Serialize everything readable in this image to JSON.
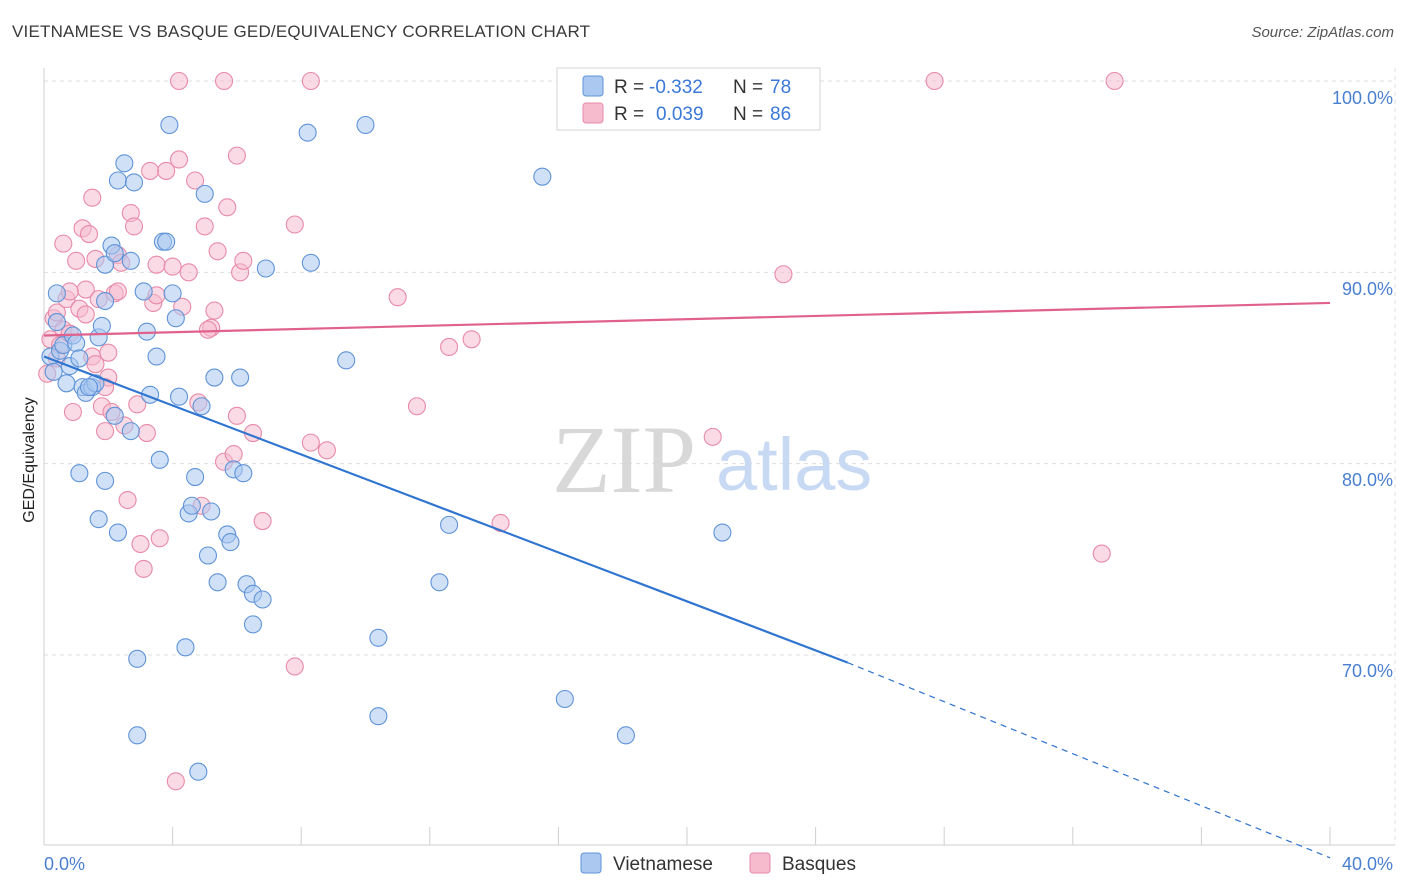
{
  "title": "VIETNAMESE VS BASQUE GED/EQUIVALENCY CORRELATION CHART",
  "source": "Source: ZipAtlas.com",
  "watermark": {
    "zip": "ZIP",
    "atlas": "atlas"
  },
  "legend": {
    "r_label": "R =",
    "n_label": "N =",
    "rows": [
      {
        "r": "-0.332",
        "n": "78"
      },
      {
        "r": "0.039",
        "n": "86"
      }
    ]
  },
  "colors": {
    "blue_fill": "#aac8f0",
    "blue_stroke": "#5f93d8",
    "blue_line": "#2f74d0",
    "pink_fill": "#f6bccd",
    "pink_stroke": "#e88aa8",
    "pink_line": "#e0628c",
    "grid": "#dddddd",
    "axis_text": "#4a7fd0"
  },
  "chart_data": {
    "type": "scatter",
    "title": "VIETNAMESE VS BASQUE GED/EQUIVALENCY CORRELATION CHART",
    "xlabel": "",
    "ylabel": "GED/Equivalency",
    "xlim": [
      0,
      40
    ],
    "ylim": [
      60.5,
      101.5
    ],
    "x_tick_labels": [
      "0.0%",
      "40.0%"
    ],
    "y_ticks": [
      70,
      80,
      90,
      100
    ],
    "y_tick_labels": [
      "70.0%",
      "80.0%",
      "90.0%",
      "100.0%"
    ],
    "grid": true,
    "series": [
      {
        "name": "Vietnamese",
        "r": -0.332,
        "n": 78,
        "trend": {
          "x0": 0,
          "y0": 85.6,
          "x1": 25,
          "y1": 69.6,
          "dash_to_x": 40,
          "dash_to_y": 59.4
        },
        "points": [
          [
            0.2,
            85.6
          ],
          [
            0.3,
            84.8
          ],
          [
            0.4,
            87.4
          ],
          [
            0.5,
            85.9
          ],
          [
            0.6,
            86.2
          ],
          [
            0.7,
            84.2
          ],
          [
            0.8,
            85.1
          ],
          [
            0.9,
            86.7
          ],
          [
            0.4,
            88.9
          ],
          [
            1.0,
            86.3
          ],
          [
            1.1,
            85.5
          ],
          [
            1.2,
            84.0
          ],
          [
            1.3,
            83.7
          ],
          [
            1.5,
            84.0
          ],
          [
            1.6,
            84.2
          ],
          [
            1.7,
            86.6
          ],
          [
            1.8,
            87.2
          ],
          [
            1.9,
            90.4
          ],
          [
            2.1,
            91.4
          ],
          [
            2.2,
            91.0
          ],
          [
            2.3,
            94.8
          ],
          [
            2.5,
            95.7
          ],
          [
            2.8,
            94.7
          ],
          [
            2.7,
            90.6
          ],
          [
            1.9,
            88.5
          ],
          [
            3.1,
            89.0
          ],
          [
            3.2,
            86.9
          ],
          [
            3.3,
            83.6
          ],
          [
            3.5,
            85.6
          ],
          [
            3.6,
            80.2
          ],
          [
            3.7,
            91.6
          ],
          [
            3.8,
            91.6
          ],
          [
            3.9,
            97.7
          ],
          [
            4.0,
            88.9
          ],
          [
            4.1,
            87.6
          ],
          [
            4.2,
            83.5
          ],
          [
            4.4,
            70.4
          ],
          [
            4.5,
            77.4
          ],
          [
            4.6,
            77.8
          ],
          [
            4.7,
            79.3
          ],
          [
            4.9,
            83.0
          ],
          [
            5.0,
            94.1
          ],
          [
            5.1,
            75.2
          ],
          [
            5.2,
            77.5
          ],
          [
            5.3,
            84.5
          ],
          [
            5.4,
            73.8
          ],
          [
            5.7,
            76.3
          ],
          [
            5.8,
            75.9
          ],
          [
            5.9,
            79.7
          ],
          [
            6.1,
            84.5
          ],
          [
            6.2,
            79.5
          ],
          [
            6.3,
            73.7
          ],
          [
            6.5,
            73.2
          ],
          [
            6.5,
            71.6
          ],
          [
            6.8,
            72.9
          ],
          [
            6.9,
            90.2
          ],
          [
            8.2,
            97.3
          ],
          [
            8.3,
            90.5
          ],
          [
            9.4,
            85.4
          ],
          [
            10.0,
            97.7
          ],
          [
            10.4,
            70.9
          ],
          [
            10.4,
            66.8
          ],
          [
            12.3,
            73.8
          ],
          [
            12.6,
            76.8
          ],
          [
            15.5,
            95.0
          ],
          [
            16.2,
            67.7
          ],
          [
            18.1,
            65.8
          ],
          [
            21.1,
            76.4
          ],
          [
            2.9,
            65.8
          ],
          [
            2.9,
            69.8
          ],
          [
            4.8,
            63.9
          ],
          [
            1.1,
            79.5
          ],
          [
            1.7,
            77.1
          ],
          [
            2.3,
            76.4
          ],
          [
            2.7,
            81.7
          ],
          [
            1.9,
            79.1
          ],
          [
            2.2,
            82.5
          ],
          [
            1.4,
            84.0
          ]
        ]
      },
      {
        "name": "Basques",
        "r": 0.039,
        "n": 86,
        "trend": {
          "x0": 0,
          "y0": 86.7,
          "x1": 40,
          "y1": 88.4
        },
        "points": [
          [
            0.1,
            84.7
          ],
          [
            0.2,
            86.5
          ],
          [
            0.3,
            87.6
          ],
          [
            0.4,
            87.9
          ],
          [
            0.5,
            86.2
          ],
          [
            0.6,
            87.0
          ],
          [
            0.7,
            88.6
          ],
          [
            0.8,
            86.8
          ],
          [
            0.9,
            82.7
          ],
          [
            1.0,
            90.6
          ],
          [
            1.1,
            88.1
          ],
          [
            1.2,
            92.3
          ],
          [
            1.3,
            89.1
          ],
          [
            1.4,
            92.0
          ],
          [
            1.5,
            93.9
          ],
          [
            1.6,
            90.7
          ],
          [
            1.7,
            88.6
          ],
          [
            1.8,
            83.0
          ],
          [
            1.9,
            81.7
          ],
          [
            2.0,
            84.5
          ],
          [
            2.1,
            82.7
          ],
          [
            2.2,
            88.9
          ],
          [
            2.3,
            90.9
          ],
          [
            2.4,
            90.5
          ],
          [
            2.5,
            82.0
          ],
          [
            2.6,
            78.1
          ],
          [
            2.7,
            93.1
          ],
          [
            2.8,
            92.4
          ],
          [
            2.9,
            83.1
          ],
          [
            3.0,
            75.8
          ],
          [
            3.1,
            74.5
          ],
          [
            3.2,
            81.6
          ],
          [
            3.3,
            95.3
          ],
          [
            3.4,
            88.4
          ],
          [
            3.5,
            90.4
          ],
          [
            3.6,
            76.1
          ],
          [
            3.8,
            95.3
          ],
          [
            4.0,
            90.3
          ],
          [
            4.2,
            95.9
          ],
          [
            4.3,
            88.2
          ],
          [
            4.5,
            90.0
          ],
          [
            4.7,
            94.8
          ],
          [
            4.9,
            77.8
          ],
          [
            5.0,
            92.4
          ],
          [
            5.2,
            87.1
          ],
          [
            5.3,
            88.0
          ],
          [
            5.4,
            91.1
          ],
          [
            5.6,
            80.1
          ],
          [
            5.7,
            93.4
          ],
          [
            5.9,
            80.5
          ],
          [
            6.0,
            82.5
          ],
          [
            6.0,
            96.1
          ],
          [
            6.1,
            90.0
          ],
          [
            6.2,
            90.6
          ],
          [
            6.5,
            81.6
          ],
          [
            6.8,
            77.0
          ],
          [
            7.8,
            92.5
          ],
          [
            8.3,
            81.1
          ],
          [
            8.8,
            80.7
          ],
          [
            7.8,
            69.4
          ],
          [
            4.1,
            63.4
          ],
          [
            11.0,
            88.7
          ],
          [
            11.6,
            83.0
          ],
          [
            12.6,
            86.1
          ],
          [
            13.3,
            86.5
          ],
          [
            14.2,
            76.9
          ],
          [
            20.8,
            81.4
          ],
          [
            23.0,
            89.9
          ],
          [
            27.7,
            100.0
          ],
          [
            32.9,
            75.3
          ],
          [
            33.3,
            100.0
          ],
          [
            4.2,
            100.0
          ],
          [
            5.6,
            100.0
          ],
          [
            8.3,
            100.0
          ],
          [
            1.5,
            85.6
          ],
          [
            0.6,
            91.5
          ],
          [
            2.3,
            89.0
          ],
          [
            3.5,
            88.8
          ],
          [
            1.9,
            84.0
          ],
          [
            0.8,
            89.0
          ],
          [
            1.3,
            87.8
          ],
          [
            2.0,
            85.8
          ],
          [
            4.8,
            83.2
          ],
          [
            5.1,
            87.0
          ],
          [
            0.4,
            85.5
          ],
          [
            1.6,
            85.2
          ]
        ]
      }
    ]
  }
}
